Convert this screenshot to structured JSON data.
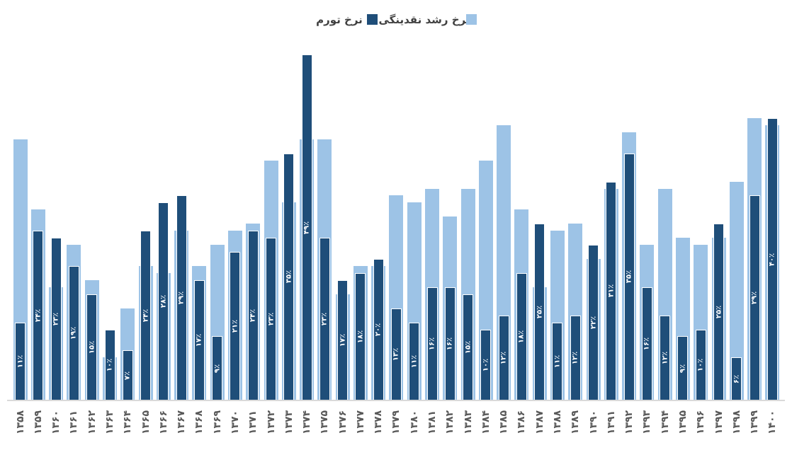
{
  "legend": {
    "inflation_label": "نرخ تورم",
    "liquidity_label": "نرخ رشد نقدینگی"
  },
  "colors": {
    "inflation": "#1f4e79",
    "liquidity": "#9dc3e6",
    "axis_line": "#d9d9d9",
    "axis_text": "#595959",
    "bar_label_text": "#ffffff"
  },
  "chart_data": {
    "type": "bar",
    "title": "",
    "xlabel": "",
    "ylabel": "",
    "ylim": [
      0,
      50
    ],
    "unit": "percent",
    "legend_position": "top",
    "grid": false,
    "categories": [
      "۱۳۵۸",
      "۱۳۵۹",
      "۱۳۶۰",
      "۱۳۶۱",
      "۱۳۶۲",
      "۱۳۶۳",
      "۱۳۶۴",
      "۱۳۶۵",
      "۱۳۶۶",
      "۱۳۶۷",
      "۱۳۶۸",
      "۱۳۶۹",
      "۱۳۷۰",
      "۱۳۷۱",
      "۱۳۷۲",
      "۱۳۷۳",
      "۱۳۷۴",
      "۱۳۷۵",
      "۱۳۷۶",
      "۱۳۷۷",
      "۱۳۷۸",
      "۱۳۷۹",
      "۱۳۸۰",
      "۱۳۸۱",
      "۱۳۸۲",
      "۱۳۸۳",
      "۱۳۸۴",
      "۱۳۸۵",
      "۱۳۸۶",
      "۱۳۸۷",
      "۱۳۸۸",
      "۱۳۸۹",
      "۱۳۹۰",
      "۱۳۹۱",
      "۱۳۹۲",
      "۱۳۹۳",
      "۱۳۹۴",
      "۱۳۹۵",
      "۱۳۹۶",
      "۱۳۹۷",
      "۱۳۹۸",
      "۱۳۹۹",
      "۱۴۰۰"
    ],
    "series": [
      {
        "name": "نرخ تورم",
        "color": "#1f4e79",
        "values": [
          11,
          24,
          23,
          19,
          15,
          10,
          7,
          24,
          28,
          29,
          17,
          9,
          21,
          24,
          23,
          35,
          49,
          23,
          17,
          18,
          20,
          13,
          11,
          16,
          16,
          15,
          10,
          12,
          18,
          25,
          11,
          12,
          22,
          31,
          35,
          16,
          12,
          9,
          10,
          25,
          6,
          29,
          40
        ],
        "labels": [
          "۱۱٪",
          "۲۴٪",
          "۲۳٪",
          "۱۹٪",
          "۱۵٪",
          "۱۰٪",
          "۷٪",
          "۲۴٪",
          "۲۸٪",
          "۲۹٪",
          "۱۷٪",
          "۹٪",
          "۲۱٪",
          "۲۴٪",
          "۲۳٪",
          "۳۵٪",
          "۴۹٪",
          "۲۳٪",
          "۱۷٪",
          "۱۸٪",
          "۲۰٪",
          "۱۳٪",
          "۱۱٪",
          "۱۶٪",
          "۱۶٪",
          "۱۵٪",
          "۱۰٪",
          "۱۲٪",
          "۱۸٪",
          "۲۵٪",
          "۱۱٪",
          "۱۲٪",
          "۲۲٪",
          "۳۱٪",
          "۳۵٪",
          "۱۶٪",
          "۱۲٪",
          "۹٪",
          "۱۰٪",
          "۲۵٪",
          "۶٪",
          "۲۹٪",
          "۴۰٪"
        ]
      },
      {
        "name": "نرخ رشد نقدینگی",
        "color": "#9dc3e6",
        "values": [
          37,
          27,
          16,
          22,
          17,
          6,
          13,
          19,
          18,
          24,
          19,
          22,
          24,
          25,
          34,
          28,
          37,
          37,
          15,
          19,
          19,
          29,
          28,
          30,
          26,
          30,
          34,
          39,
          27,
          16,
          24,
          25,
          20,
          30,
          38,
          22,
          30,
          23,
          22,
          23,
          31,
          40,
          39
        ]
      }
    ]
  }
}
